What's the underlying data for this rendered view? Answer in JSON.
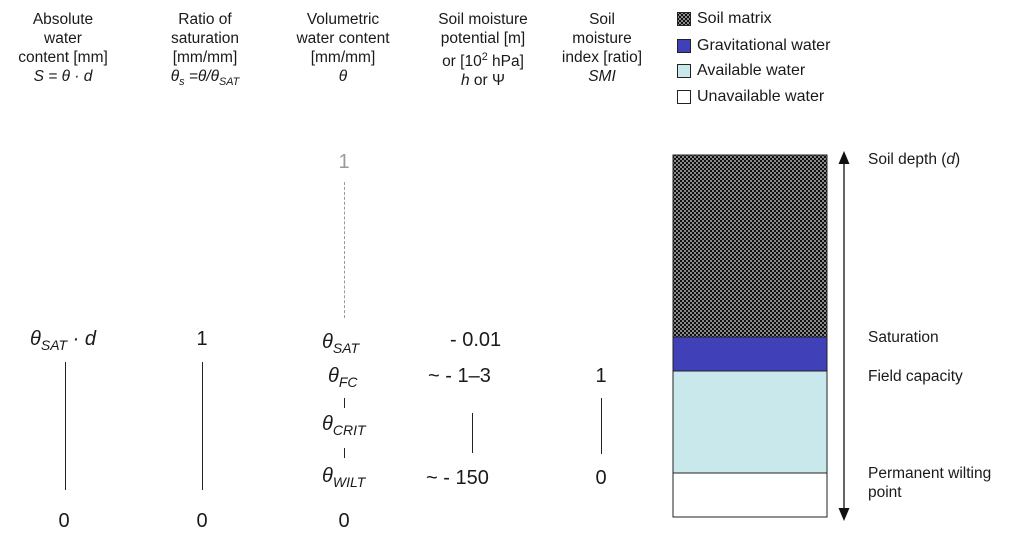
{
  "columns": [
    {
      "lines": [
        "Absolute",
        "water",
        "content [mm]"
      ],
      "symbol": "S = θ · d"
    },
    {
      "lines": [
        "Ratio of",
        "saturation",
        "[mm/mm]"
      ],
      "symbol_main": "θ",
      "symbol_sub": "s",
      "symbol_rest": " =θ/θ",
      "symbol_sub2": "SAT"
    },
    {
      "lines": [
        "Volumetric",
        "water content",
        "[mm/mm]"
      ],
      "symbol": "θ"
    },
    {
      "lines": [
        "Soil moisture",
        "potential [m]"
      ],
      "line3_pre": "or [10",
      "line3_sup": "2",
      "line3_post": " hPa]",
      "symbol": "h",
      "symbol_mid": " or ",
      "symbol2": "Ψ"
    },
    {
      "lines": [
        "Soil",
        "moisture",
        "index [ratio]"
      ],
      "symbol": "SMI"
    }
  ],
  "legend": [
    {
      "label": "Soil matrix",
      "pattern": "checker"
    },
    {
      "label": "Gravitational water",
      "color": "#4040b8"
    },
    {
      "label": "Available water",
      "color": "#c9e8ec"
    },
    {
      "label": "Unavailable water",
      "color": "#ffffff"
    }
  ],
  "column1": {
    "top_main": "θ",
    "top_sub": "SAT",
    "top_rest": "· d",
    "bottom": "0"
  },
  "column2": {
    "top": "1",
    "bottom": "0"
  },
  "column3": {
    "one": "1",
    "sat_main": "θ",
    "sat_sub": "SAT",
    "fc_main": "θ",
    "fc_sub": "FC",
    "crit_main": "θ",
    "crit_sub": "CRIT",
    "wilt_main": "θ",
    "wilt_sub": "WILT",
    "bottom": "0"
  },
  "column4": {
    "sat": "- 0.01",
    "fc": "~ - 1–3",
    "wilt": "~ - 150"
  },
  "column5": {
    "fc": "1",
    "wilt": "0"
  },
  "right_labels": {
    "depth_pre": "Soil depth (",
    "depth_sym": "d",
    "depth_post": ")",
    "saturation": "Saturation",
    "field_capacity": "Field capacity",
    "wilting_1": "Permanent wilting",
    "wilting_2": "point"
  }
}
